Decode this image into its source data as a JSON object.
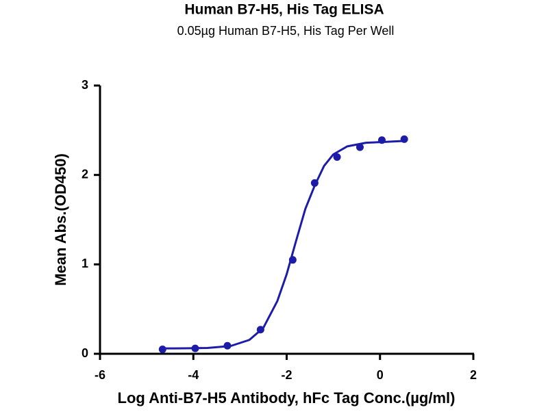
{
  "chart_data": {
    "type": "scatter",
    "title": "Human B7-H5, His Tag ELISA",
    "subtitle": "0.05µg Human B7-H5, His Tag Per Well",
    "x_label": "Log Anti-B7-H5 Antibody, hFc Tag Conc.(µg/ml)",
    "y_label": "Mean Abs.(OD450)",
    "xlim": [
      -6,
      2
    ],
    "xticks": [
      -6,
      -4,
      -2,
      0,
      2
    ],
    "ylim": [
      0,
      3
    ],
    "yticks": [
      0,
      1,
      2,
      3
    ],
    "series": [
      {
        "mode": "markers",
        "color": "#1c1ca8",
        "x": [
          -4.66,
          -3.96,
          -3.27,
          -2.56,
          -1.87,
          -1.4,
          -0.92,
          -0.43,
          0.04,
          0.52
        ],
        "values": [
          0.05,
          0.06,
          0.09,
          0.27,
          1.05,
          1.91,
          2.2,
          2.31,
          2.39,
          2.4
        ]
      },
      {
        "mode": "line",
        "color": "#1c1ca8",
        "x": [
          -4.7,
          -4.2,
          -3.7,
          -3.2,
          -2.8,
          -2.5,
          -2.2,
          -2.0,
          -1.8,
          -1.6,
          -1.4,
          -1.2,
          -1.0,
          -0.7,
          -0.3,
          0.1,
          0.5
        ],
        "values": [
          0.06,
          0.061,
          0.065,
          0.087,
          0.155,
          0.29,
          0.59,
          0.89,
          1.26,
          1.62,
          1.88,
          2.1,
          2.23,
          2.32,
          2.36,
          2.37,
          2.38
        ]
      }
    ]
  }
}
